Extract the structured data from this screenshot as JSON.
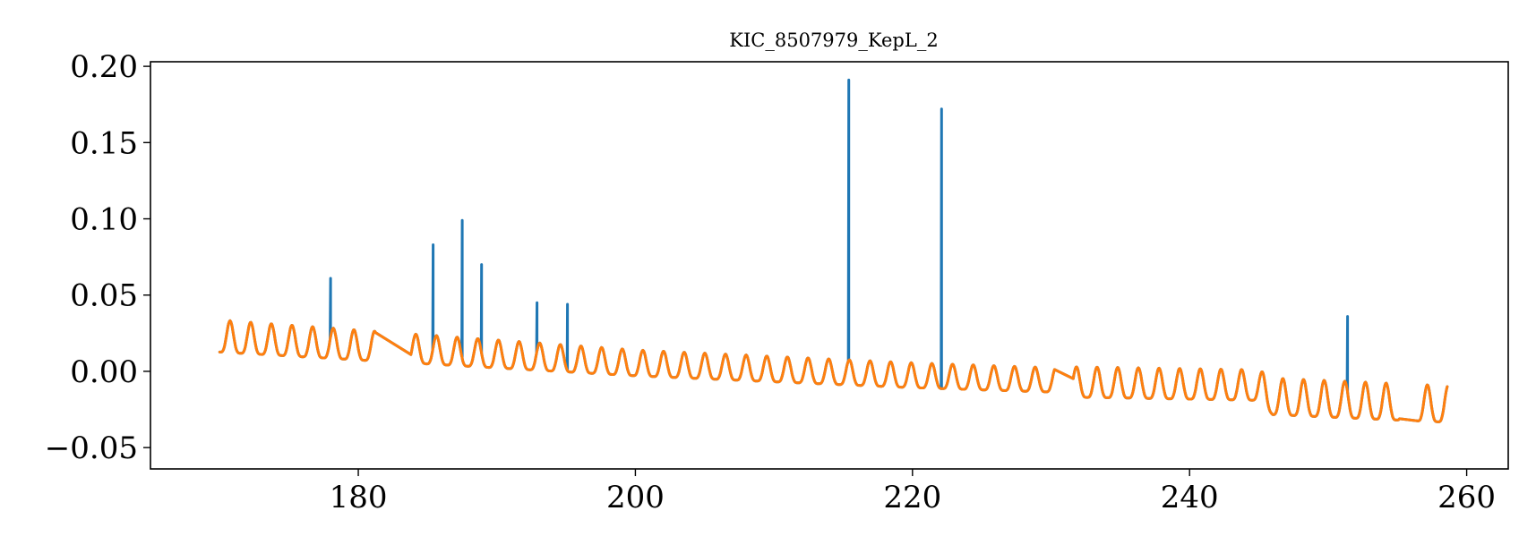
{
  "chart_data": {
    "type": "line",
    "title": "KIC_8507979_KepL_2",
    "xlabel": "",
    "ylabel": "",
    "xlim": [
      165,
      263
    ],
    "ylim": [
      -0.064,
      0.203
    ],
    "x_ticks": [
      180,
      200,
      220,
      240,
      260
    ],
    "x_tick_labels": [
      "180",
      "200",
      "220",
      "240",
      "260"
    ],
    "y_ticks": [
      -0.05,
      0.0,
      0.05,
      0.1,
      0.15,
      0.2
    ],
    "y_tick_labels": [
      "−0.05",
      "0.00",
      "0.05",
      "0.10",
      "0.15",
      "0.20"
    ],
    "grid": false,
    "legend": "none",
    "signal": {
      "x_start": 170.0,
      "x_end": 258.6,
      "period": 1.49,
      "trend_knots": [
        [
          170,
          0.02
        ],
        [
          200,
          0.003
        ],
        [
          220,
          -0.005
        ],
        [
          230,
          -0.008
        ],
        [
          232,
          -0.01
        ],
        [
          245,
          -0.012
        ],
        [
          246,
          -0.02
        ],
        [
          258.6,
          -0.025
        ]
      ],
      "amplitude_knots": [
        [
          170,
          0.021
        ],
        [
          200,
          0.017
        ],
        [
          230,
          0.016
        ],
        [
          232,
          0.02
        ],
        [
          245,
          0.02
        ],
        [
          246,
          0.024
        ],
        [
          258.6,
          0.024
        ]
      ],
      "gaps": [
        [
          181.3,
          183.8
        ],
        [
          230.3,
          231.6
        ],
        [
          255.2,
          256.5
        ]
      ]
    },
    "series": [
      {
        "color": "#1f77b4",
        "spikes": [
          [
            178.0,
            0.061
          ],
          [
            185.4,
            0.083
          ],
          [
            187.5,
            0.099
          ],
          [
            188.9,
            0.07
          ],
          [
            192.9,
            0.045
          ],
          [
            195.1,
            0.044
          ],
          [
            215.4,
            0.191
          ],
          [
            222.1,
            0.172
          ],
          [
            251.4,
            0.036
          ]
        ]
      },
      {
        "color": "#ff7f0e",
        "spikes": []
      }
    ]
  }
}
